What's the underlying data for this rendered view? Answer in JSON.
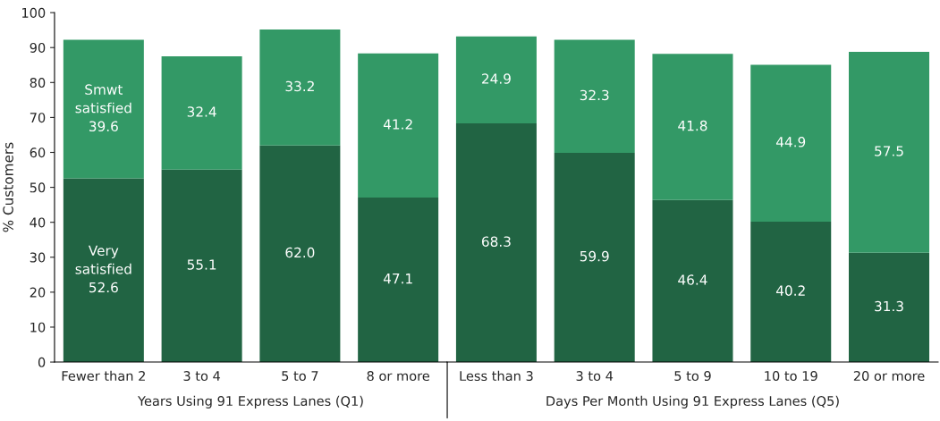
{
  "chart_data": [
    {
      "type": "bar",
      "stacked": true,
      "ylabel": "% Customers",
      "xlabel": "Years Using 91 Express Lanes (Q1)",
      "categories": [
        "Fewer than 2",
        "3 to 4",
        "5 to 7",
        "8 or more"
      ],
      "ylim": [
        0,
        100
      ],
      "yticks": [
        0,
        10,
        20,
        30,
        40,
        50,
        60,
        70,
        80,
        90,
        100
      ],
      "grid": false,
      "series": [
        {
          "color": "#216443",
          "values": [
            52.6,
            55.1,
            62.0,
            47.1
          ],
          "value_labels": [
            "Very\nsatisfied\n52.6",
            "55.1",
            "62.0",
            "47.1"
          ]
        },
        {
          "color": "#339966",
          "values": [
            39.6,
            32.4,
            33.2,
            41.2
          ],
          "value_labels": [
            "Smwt\nsatisfied\n39.6",
            "32.4",
            "33.2",
            "41.2"
          ]
        }
      ]
    },
    {
      "type": "bar",
      "stacked": true,
      "xlabel": "Days Per Month Using 91 Express Lanes (Q5)",
      "categories": [
        "Less than 3",
        "3 to 4",
        "5 to 9",
        "10 to 19",
        "20 or more"
      ],
      "ylim": [
        0,
        100
      ],
      "yticks": [
        0,
        10,
        20,
        30,
        40,
        50,
        60,
        70,
        80,
        90,
        100
      ],
      "tick_labels": "x",
      "grid": false,
      "series": [
        {
          "color": "#216443",
          "values": [
            68.3,
            59.9,
            46.4,
            40.2,
            31.3
          ],
          "value_labels": [
            "68.3",
            "59.9",
            "46.4",
            "40.2",
            "31.3"
          ]
        },
        {
          "color": "#339966",
          "values": [
            24.9,
            32.3,
            41.8,
            44.9,
            57.5
          ],
          "value_labels": [
            "24.9",
            "32.3",
            "41.8",
            "44.9",
            "57.5"
          ]
        }
      ]
    }
  ]
}
